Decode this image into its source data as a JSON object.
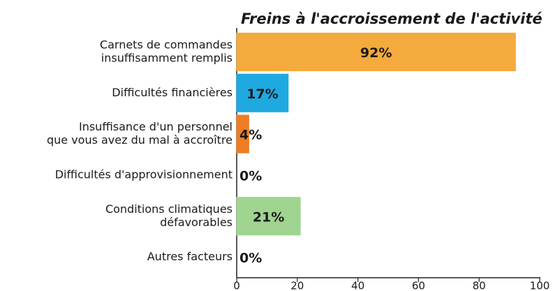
{
  "chart_data": {
    "type": "bar",
    "orientation": "horizontal",
    "title": "Freins à l'accroissement de l'activité",
    "categories": [
      [
        "Carnets de commandes",
        "insuffisamment remplis"
      ],
      [
        "Difficultés financières"
      ],
      [
        "Insuffisance d'un personnel",
        "que vous avez du mal à accroître"
      ],
      [
        "Difficultés d'approvisionnement"
      ],
      [
        "Conditions climatiques",
        "défavorables"
      ],
      [
        "Autres facteurs"
      ]
    ],
    "values": [
      92,
      17,
      4,
      0,
      21,
      0
    ],
    "value_labels": [
      "92%",
      "17%",
      "4%",
      "0%",
      "21%",
      "0%"
    ],
    "colors": [
      "#f4aa3c",
      "#1ea9e1",
      "#ee7d23",
      "#8b5a2b",
      "#a0d491",
      "#7a5a9a"
    ],
    "xlim": [
      0,
      100
    ],
    "xticks": [
      0,
      20,
      40,
      60,
      80,
      100
    ],
    "grid": false
  }
}
